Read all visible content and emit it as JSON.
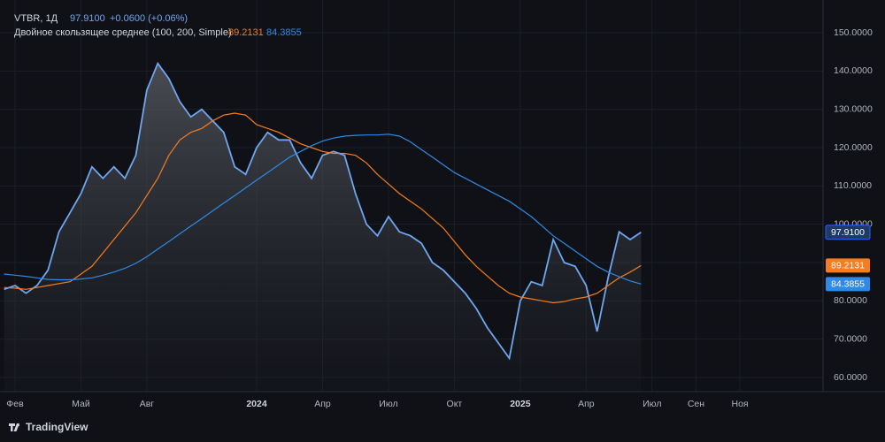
{
  "chart_data": {
    "type": "line",
    "header": {
      "symbol": "VTBR, 1Д",
      "last_price": "97.9100",
      "change": "+0.0600 (+0.06%)",
      "indicator": "Двойное скользящее среднее (100, 200, Simple)",
      "ma100_last": "89.2131",
      "ma200_last": "84.3855"
    },
    "brand": "TradingView",
    "categories": [
      null,
      "Фев",
      null,
      null,
      null,
      null,
      null,
      "Май",
      null,
      null,
      null,
      null,
      null,
      "Авг",
      null,
      null,
      null,
      null,
      null,
      null,
      null,
      null,
      null,
      "2024",
      null,
      null,
      null,
      null,
      null,
      "Апр",
      null,
      null,
      null,
      null,
      null,
      "Июл",
      null,
      null,
      null,
      null,
      null,
      "Окт",
      null,
      null,
      null,
      null,
      null,
      "2025",
      null,
      null,
      null,
      null,
      null,
      "Апр",
      null,
      null,
      null,
      null,
      null,
      "Июл",
      null,
      null,
      null,
      "Сен",
      null,
      null,
      null,
      "Ноя",
      null
    ],
    "series": [
      {
        "name": "VTBR",
        "color": "#6ea6f0",
        "values": [
          83,
          84,
          82,
          84,
          88,
          98,
          103,
          108,
          115,
          112,
          115,
          112,
          118,
          135,
          142,
          138,
          132,
          128,
          130,
          127,
          124,
          115,
          113,
          120,
          124,
          122,
          122,
          116,
          112,
          118,
          119,
          118,
          108,
          100,
          97,
          102,
          98,
          97,
          95,
          90,
          88,
          85,
          82,
          78,
          73,
          69,
          65,
          80,
          85,
          84,
          96,
          90,
          89,
          84,
          72,
          86,
          98,
          96,
          97.91,
          null,
          null,
          null,
          null,
          null,
          null,
          null,
          null,
          null,
          null
        ]
      },
      {
        "name": "MA100",
        "color": "#f57c1f",
        "values": [
          83.5,
          83.3,
          83,
          83.5,
          84,
          84.5,
          85,
          87,
          89,
          92.5,
          96,
          99.5,
          103,
          107.5,
          112,
          118,
          122,
          124,
          125,
          127,
          128.5,
          129,
          128.5,
          126,
          125,
          124,
          122.5,
          121,
          120,
          119,
          118.5,
          118.5,
          118,
          116,
          113,
          110.5,
          108,
          106,
          104,
          101.5,
          99,
          95.5,
          92,
          89,
          86.5,
          84,
          82,
          81,
          80.5,
          80,
          79.5,
          79.8,
          80.5,
          81,
          82,
          84,
          86,
          87.5,
          89.2131,
          null,
          null,
          null,
          null,
          null,
          null,
          null,
          null,
          null,
          null
        ]
      },
      {
        "name": "MA200",
        "color": "#2e8ae6",
        "values": [
          87,
          86.7,
          86.4,
          86,
          85.6,
          85.5,
          85.5,
          85.7,
          86,
          86.7,
          87.5,
          88.5,
          89.8,
          91.5,
          93.5,
          95.5,
          97.5,
          99.5,
          101.5,
          103.5,
          105.5,
          107.5,
          109.5,
          111.5,
          113.5,
          115.5,
          117.5,
          119,
          120.5,
          121.7,
          122.5,
          123,
          123.2,
          123.3,
          123.3,
          123.5,
          123,
          121.5,
          119.5,
          117.5,
          115.5,
          113.5,
          112,
          110.5,
          109,
          107.5,
          106,
          104,
          102,
          99.5,
          97,
          95,
          93,
          91,
          89,
          87.5,
          86.3,
          85.2,
          84.3855,
          null,
          null,
          null,
          null,
          null,
          null,
          null,
          null,
          null,
          null
        ]
      }
    ],
    "ylim": [
      56.3,
      156.7
    ],
    "yticks": [
      {
        "value": 60,
        "label": "60.0000"
      },
      {
        "value": 70,
        "label": "70.0000"
      },
      {
        "value": 80,
        "label": "80.0000"
      },
      {
        "value": 90,
        "label": "90.0000"
      },
      {
        "value": 100,
        "label": "100.0000"
      },
      {
        "value": 110,
        "label": "110.0000"
      },
      {
        "value": 120,
        "label": "120.0000"
      },
      {
        "value": 130,
        "label": "130.0000"
      },
      {
        "value": 140,
        "label": "140.0000"
      },
      {
        "value": 150,
        "label": "150.0000"
      }
    ],
    "grid": true
  }
}
